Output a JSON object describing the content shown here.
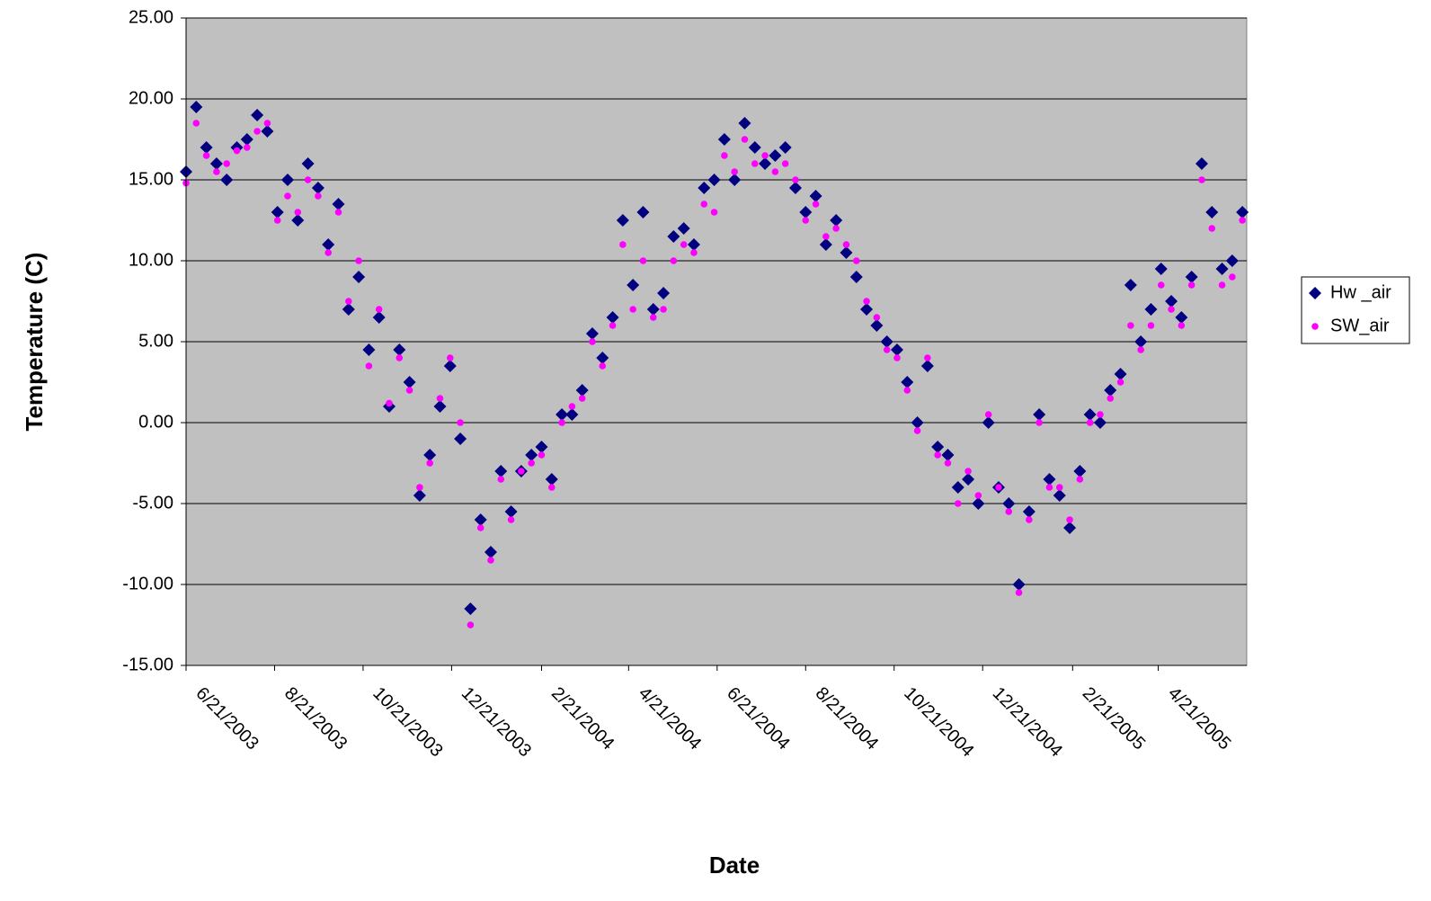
{
  "chart_data": {
    "type": "scatter",
    "x_label": "Date",
    "y_label": "Temperature (C)",
    "xlim": [
      "2003-06-21",
      "2005-06-21"
    ],
    "ylim": [
      -15,
      25
    ],
    "xticks": [
      {
        "value": "2003-06-21",
        "label": "6/21/2003"
      },
      {
        "value": "2003-08-21",
        "label": "8/21/2003"
      },
      {
        "value": "2003-10-21",
        "label": "10/21/2003"
      },
      {
        "value": "2003-12-21",
        "label": "12/21/2003"
      },
      {
        "value": "2004-02-21",
        "label": "2/21/2004"
      },
      {
        "value": "2004-04-21",
        "label": "4/21/2004"
      },
      {
        "value": "2004-06-21",
        "label": "6/21/2004"
      },
      {
        "value": "2004-08-21",
        "label": "8/21/2004"
      },
      {
        "value": "2004-10-21",
        "label": "10/21/2004"
      },
      {
        "value": "2004-12-21",
        "label": "12/21/2004"
      },
      {
        "value": "2005-02-21",
        "label": "2/21/2005"
      },
      {
        "value": "2005-04-21",
        "label": "4/21/2005"
      }
    ],
    "yticks": [
      {
        "value": -15,
        "label": "-15.00"
      },
      {
        "value": -10,
        "label": "-10.00"
      },
      {
        "value": -5,
        "label": "-5.00"
      },
      {
        "value": 0,
        "label": "0.00"
      },
      {
        "value": 5,
        "label": "5.00"
      },
      {
        "value": 10,
        "label": "10.00"
      },
      {
        "value": 15,
        "label": "15.00"
      },
      {
        "value": 20,
        "label": "20.00"
      },
      {
        "value": 25,
        "label": "25.00"
      }
    ],
    "grid": true,
    "legend": "right",
    "x": [
      "2003-06-21",
      "2003-06-28",
      "2003-07-05",
      "2003-07-12",
      "2003-07-19",
      "2003-07-26",
      "2003-08-02",
      "2003-08-09",
      "2003-08-16",
      "2003-08-23",
      "2003-08-30",
      "2003-09-06",
      "2003-09-13",
      "2003-09-20",
      "2003-09-27",
      "2003-10-04",
      "2003-10-11",
      "2003-10-18",
      "2003-10-25",
      "2003-11-01",
      "2003-11-08",
      "2003-11-15",
      "2003-11-22",
      "2003-11-29",
      "2003-12-06",
      "2003-12-13",
      "2003-12-20",
      "2003-12-27",
      "2004-01-03",
      "2004-01-10",
      "2004-01-17",
      "2004-01-24",
      "2004-01-31",
      "2004-02-07",
      "2004-02-14",
      "2004-02-21",
      "2004-02-28",
      "2004-03-06",
      "2004-03-13",
      "2004-03-20",
      "2004-03-27",
      "2004-04-03",
      "2004-04-10",
      "2004-04-17",
      "2004-04-24",
      "2004-05-01",
      "2004-05-08",
      "2004-05-15",
      "2004-05-22",
      "2004-05-29",
      "2004-06-05",
      "2004-06-12",
      "2004-06-19",
      "2004-06-26",
      "2004-07-03",
      "2004-07-10",
      "2004-07-17",
      "2004-07-24",
      "2004-07-31",
      "2004-08-07",
      "2004-08-14",
      "2004-08-21",
      "2004-08-28",
      "2004-09-04",
      "2004-09-11",
      "2004-09-18",
      "2004-09-25",
      "2004-10-02",
      "2004-10-09",
      "2004-10-16",
      "2004-10-23",
      "2004-10-30",
      "2004-11-06",
      "2004-11-13",
      "2004-11-20",
      "2004-11-27",
      "2004-12-04",
      "2004-12-11",
      "2004-12-18",
      "2004-12-25",
      "2005-01-01",
      "2005-01-08",
      "2005-01-15",
      "2005-01-22",
      "2005-01-29",
      "2005-02-05",
      "2005-02-12",
      "2005-02-19",
      "2005-02-26",
      "2005-03-05",
      "2005-03-12",
      "2005-03-19",
      "2005-03-26",
      "2005-04-02",
      "2005-04-09",
      "2005-04-16",
      "2005-04-23",
      "2005-04-30",
      "2005-05-07",
      "2005-05-14",
      "2005-05-21",
      "2005-05-28",
      "2005-06-04",
      "2005-06-11",
      "2005-06-18"
    ],
    "series": [
      {
        "name": "Hw _air",
        "color": "#000080",
        "marker": "diamond",
        "values": [
          15.5,
          19.5,
          17,
          16,
          15,
          17,
          17.5,
          19,
          18,
          13,
          15,
          12.5,
          16,
          14.5,
          11,
          13.5,
          7,
          9,
          4.5,
          6.5,
          1,
          4.5,
          2.5,
          -4.5,
          -2,
          1,
          3.5,
          -1,
          -11.5,
          -6,
          -8,
          -3,
          -5.5,
          -3,
          -2,
          -1.5,
          -3.5,
          0.5,
          0.5,
          2,
          5.5,
          4,
          6.5,
          12.5,
          8.5,
          13,
          7,
          8,
          11.5,
          12,
          11,
          14.5,
          15,
          17.5,
          15,
          18.5,
          17,
          16,
          16.5,
          17,
          14.5,
          13,
          14,
          11,
          12.5,
          10.5,
          9,
          7,
          6,
          5,
          4.5,
          2.5,
          0,
          3.5,
          -1.5,
          -2,
          -4,
          -3.5,
          -5,
          0,
          -4,
          -5,
          -10,
          -5.5,
          0.5,
          -3.5,
          -4.5,
          -6.5,
          -3,
          0.5,
          0,
          2,
          3,
          8.5,
          5,
          7,
          9.5,
          7.5,
          6.5,
          9,
          16,
          13,
          9.5,
          10,
          13
        ]
      },
      {
        "name": "SW_air",
        "color": "#ff00ff",
        "marker": "circle",
        "values": [
          14.8,
          18.5,
          16.5,
          15.5,
          16,
          16.8,
          17,
          18,
          18.5,
          12.5,
          14,
          13,
          15,
          14,
          10.5,
          13,
          7.5,
          10,
          3.5,
          7,
          1.2,
          4,
          2,
          -4,
          -2.5,
          1.5,
          4,
          0,
          -12.5,
          -6.5,
          -8.5,
          -3.5,
          -6,
          -3,
          -2.5,
          -2,
          -4,
          0,
          1,
          1.5,
          5,
          3.5,
          6,
          11,
          7,
          10,
          6.5,
          7,
          10,
          11,
          10.5,
          13.5,
          13,
          16.5,
          15.5,
          17.5,
          16,
          16.5,
          15.5,
          16,
          15,
          12.5,
          13.5,
          11.5,
          12,
          11,
          10,
          7.5,
          6.5,
          4.5,
          4,
          2,
          -0.5,
          4,
          -2,
          -2.5,
          -5,
          -3,
          -4.5,
          0.5,
          -4,
          -5.5,
          -10.5,
          -6,
          0,
          -4,
          -4,
          -6,
          -3.5,
          0,
          0.5,
          1.5,
          2.5,
          6,
          4.5,
          6,
          8.5,
          7,
          6,
          8.5,
          15,
          12,
          8.5,
          9,
          12.5
        ]
      }
    ]
  }
}
